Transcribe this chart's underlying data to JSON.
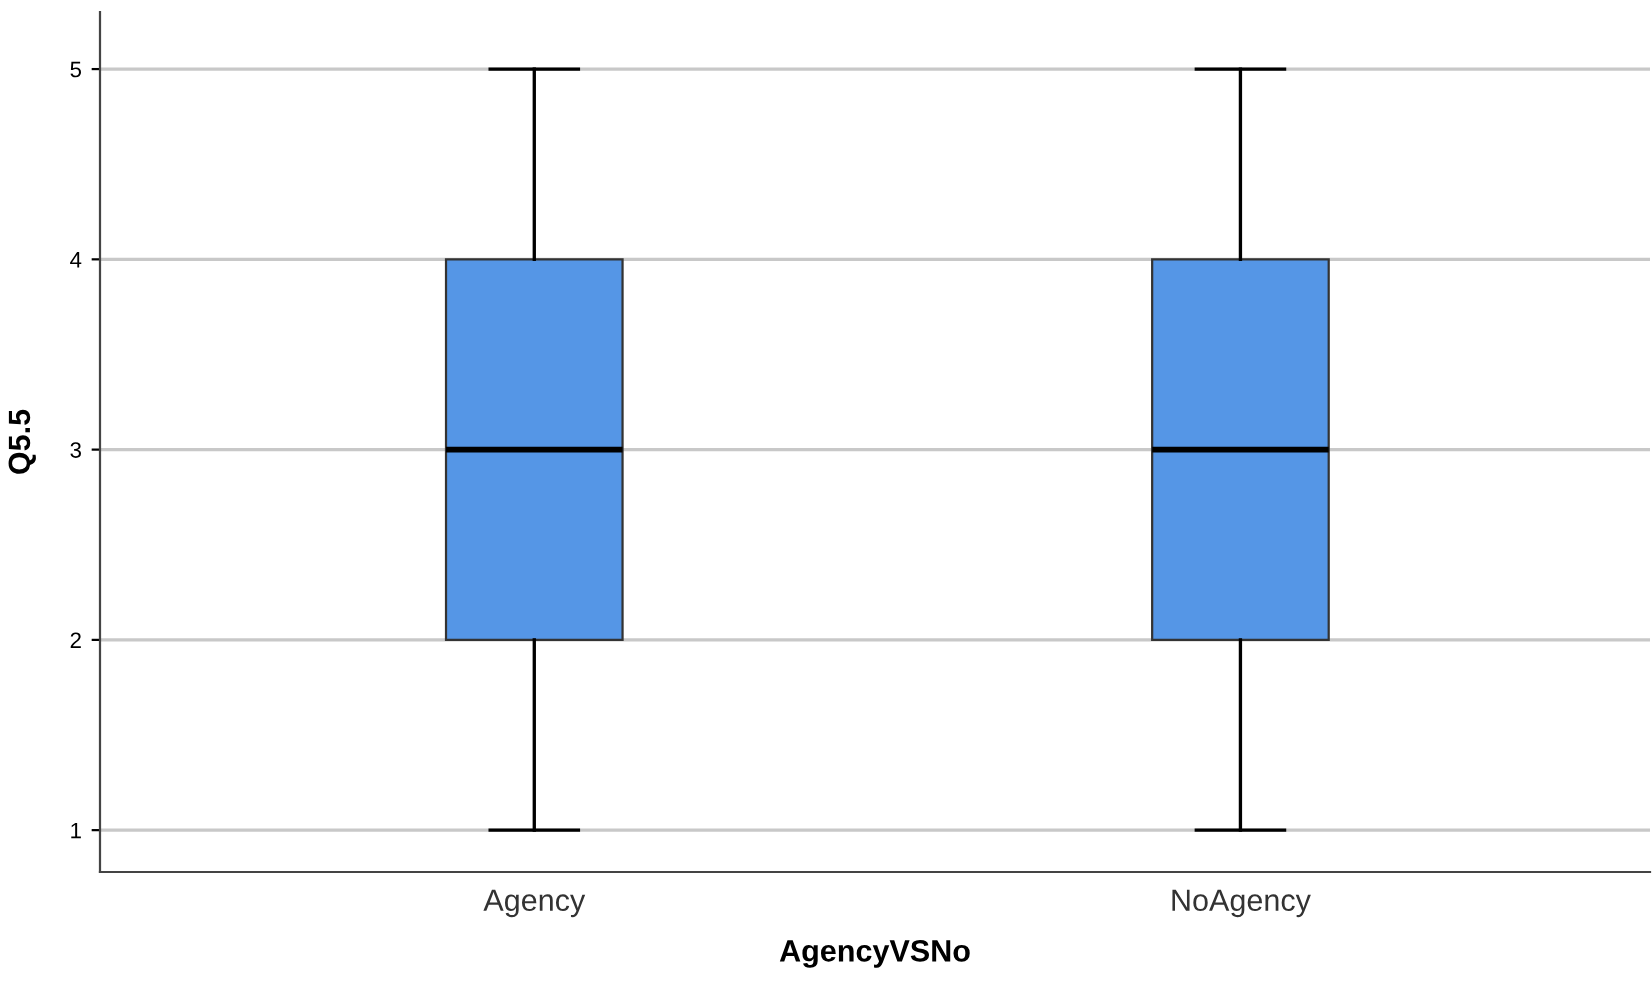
{
  "chart_data": {
    "type": "box",
    "xlabel": "AgencyVSNo",
    "ylabel": "Q5.5",
    "categories": [
      "Agency",
      "NoAgency"
    ],
    "series": [
      {
        "color": "#5596e6",
        "boxes": [
          {
            "low": 1,
            "q1": 2,
            "median": 3,
            "q3": 4,
            "high": 5
          },
          {
            "low": 1,
            "q1": 2,
            "median": 3,
            "q3": 4,
            "high": 5
          }
        ]
      }
    ],
    "ylim": [
      0.78,
      5.3
    ],
    "yticks": [
      1,
      2,
      3,
      4,
      5
    ],
    "grid": "y"
  }
}
